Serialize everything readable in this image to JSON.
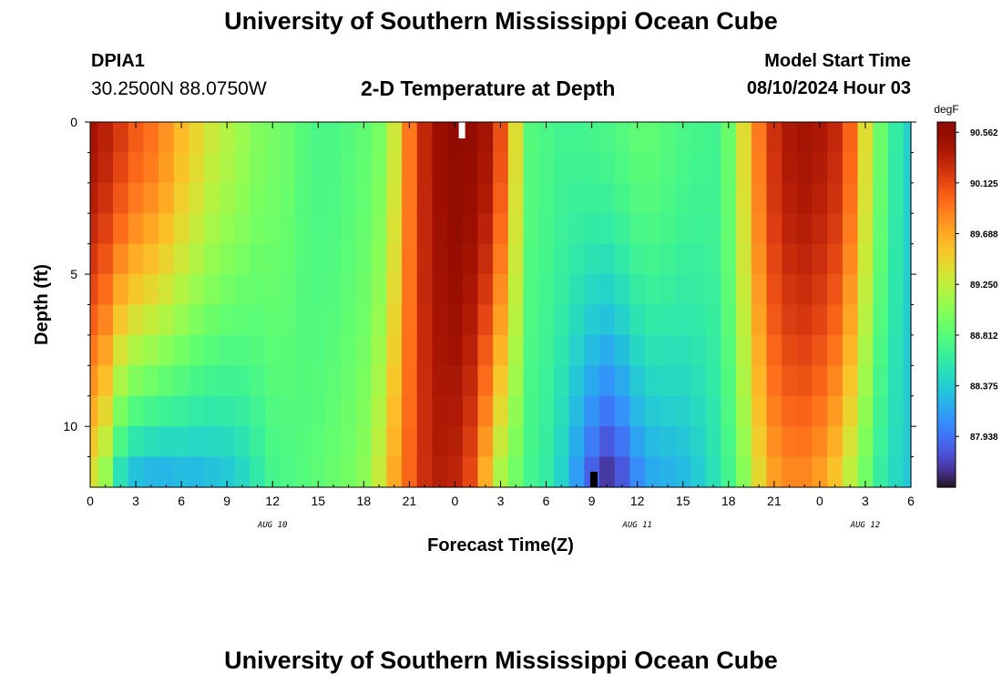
{
  "header": {
    "title": "University of Southern Mississippi Ocean Cube",
    "station": "DPIA1",
    "coordinates": "30.2500N  88.0750W",
    "subtitle": "2-D Temperature at Depth",
    "model_start_label": "Model Start Time",
    "model_start_value": "08/10/2024 Hour 03"
  },
  "footer": {
    "title": "University of Southern Mississippi Ocean Cube"
  },
  "chart_data": {
    "type": "heatmap",
    "title": "2-D Temperature at Depth",
    "xlabel": "Forecast Time(Z)",
    "ylabel": "Depth (ft)",
    "x_tick_labels": [
      "0",
      "3",
      "6",
      "9",
      "12",
      "15",
      "18",
      "21",
      "0",
      "3",
      "6",
      "9",
      "12",
      "15",
      "18",
      "21",
      "0",
      "3",
      "6"
    ],
    "x_hours_since_aug10_00": [
      0,
      3,
      6,
      9,
      12,
      15,
      18,
      21,
      24,
      27,
      30,
      33,
      36,
      39,
      42,
      45,
      48,
      51,
      54
    ],
    "xlim": [
      0,
      54
    ],
    "date_labels": [
      {
        "label": "AUG 10",
        "hour": 12
      },
      {
        "label": "AUG 11",
        "hour": 36
      },
      {
        "label": "AUG 12",
        "hour": 51
      }
    ],
    "y_ticks": [
      0,
      5,
      10
    ],
    "y_tick_labels": [
      "0",
      "5",
      "10"
    ],
    "ylim": [
      12,
      0
    ],
    "y_inverted": true,
    "depth_levels_ft": [
      0.5,
      1.5,
      2.5,
      3.5,
      4.5,
      5.5,
      6.5,
      7.5,
      8.5,
      9.5,
      10.5,
      11.5
    ],
    "colorbar": {
      "unit": "degF",
      "min": 87.5,
      "max": 90.65,
      "tick_labels": [
        "90.562",
        "90.125",
        "89.688",
        "89.250",
        "88.812",
        "88.375",
        "87.938"
      ],
      "tick_values": [
        90.562,
        90.125,
        89.688,
        89.25,
        88.812,
        88.375,
        87.938
      ],
      "colormap": "turbo"
    },
    "temperature_model_degF": {
      "description_of_values": "Estimated temperature field by forecast hour (Z, hours since AUG 10 00Z) and depth (ft)",
      "hours": [
        0,
        1,
        2,
        3,
        4,
        5,
        6,
        7,
        8,
        9,
        10,
        11,
        12,
        13,
        14,
        15,
        16,
        17,
        18,
        19,
        20,
        21,
        22,
        23,
        24,
        25,
        26,
        27,
        28,
        29,
        30,
        31,
        32,
        33,
        34,
        35,
        36,
        37,
        38,
        39,
        40,
        41,
        42,
        43,
        44,
        45,
        46,
        47,
        48,
        49,
        50,
        51,
        52,
        53,
        54
      ],
      "surface_degF": [
        90.45,
        90.35,
        90.2,
        90.05,
        89.95,
        89.8,
        89.6,
        89.45,
        89.3,
        89.2,
        89.1,
        89.0,
        88.95,
        88.9,
        88.8,
        88.75,
        88.75,
        88.8,
        88.85,
        88.95,
        89.3,
        89.9,
        90.3,
        90.5,
        90.6,
        90.55,
        90.45,
        90.1,
        89.4,
        88.8,
        88.75,
        88.7,
        88.7,
        88.72,
        88.75,
        88.8,
        88.85,
        88.85,
        88.8,
        88.75,
        88.72,
        88.7,
        88.9,
        89.4,
        89.9,
        90.25,
        90.4,
        90.45,
        90.4,
        90.3,
        90.0,
        89.4,
        88.9,
        88.6,
        88.4
      ],
      "bottom_degF": [
        89.3,
        89.0,
        88.4,
        88.2,
        88.15,
        88.15,
        88.2,
        88.2,
        88.25,
        88.3,
        88.4,
        88.55,
        88.7,
        88.75,
        88.8,
        88.85,
        88.9,
        88.95,
        89.05,
        89.3,
        89.7,
        90.0,
        90.25,
        90.35,
        90.3,
        90.1,
        89.6,
        89.1,
        88.9,
        88.7,
        88.6,
        88.4,
        88.1,
        87.8,
        87.6,
        87.75,
        88.0,
        88.15,
        88.2,
        88.25,
        88.35,
        88.5,
        88.7,
        89.0,
        89.4,
        89.7,
        89.8,
        89.8,
        89.7,
        89.5,
        89.2,
        88.9,
        88.6,
        88.45,
        88.35
      ]
    }
  }
}
